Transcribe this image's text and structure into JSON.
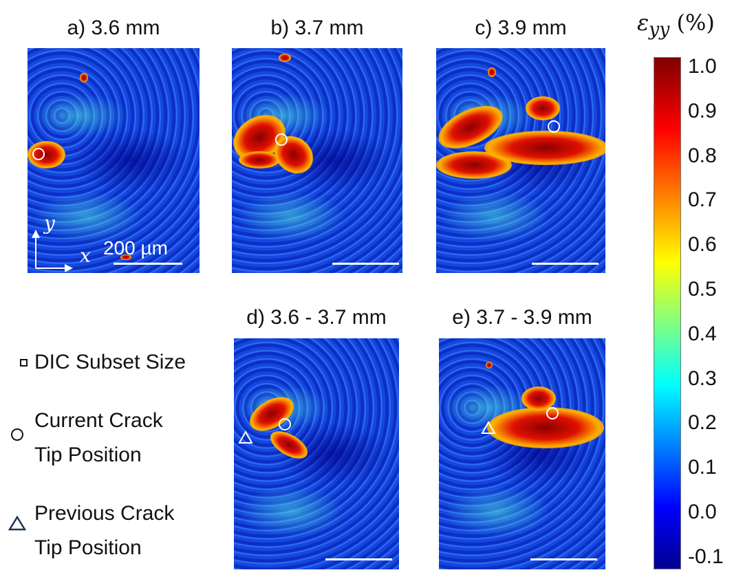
{
  "panels": [
    {
      "title": "a) 3.6 mm"
    },
    {
      "title": "b) 3.7 mm"
    },
    {
      "title": "c) 3.9 mm"
    },
    {
      "title": "d) 3.6 - 3.7 mm"
    },
    {
      "title": "e) 3.7 - 3.9 mm"
    }
  ],
  "scale_bar": {
    "label": "200 µm",
    "axis_x": "x",
    "axis_y": "y"
  },
  "colorbar": {
    "symbol": "ε",
    "subscript": "yy",
    "unit": "(%)",
    "ticks": [
      "1.0",
      "0.9",
      "0.8",
      "0.7",
      "0.6",
      "0.5",
      "0.4",
      "0.3",
      "0.2",
      "0.1",
      "0.0",
      "-0.1"
    ],
    "range": [
      -0.15,
      1.0
    ],
    "colormap": "jet"
  },
  "legend": {
    "subset": "DIC Subset Size",
    "current_1": "Current Crack",
    "current_2": "Tip Position",
    "previous_1": "Previous Crack",
    "previous_2": "Tip Position"
  },
  "colors": {
    "triangle": "#1f3550",
    "marker": "#ffffff"
  }
}
